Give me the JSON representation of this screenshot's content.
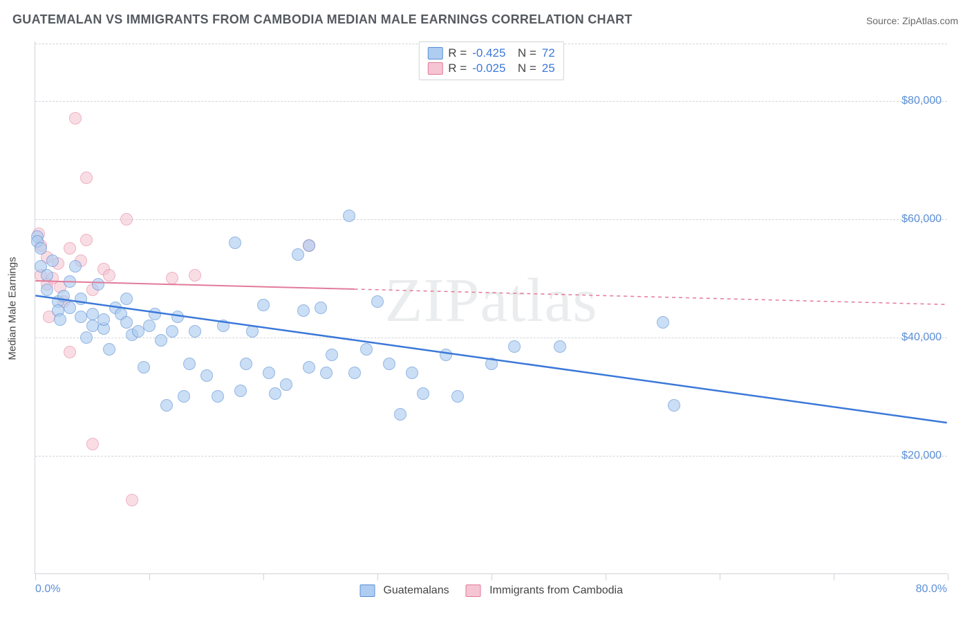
{
  "title": "GUATEMALAN VS IMMIGRANTS FROM CAMBODIA MEDIAN MALE EARNINGS CORRELATION CHART",
  "source": "Source: ZipAtlas.com",
  "watermark": "ZIPatlas",
  "chart": {
    "type": "scatter",
    "xlim": [
      0,
      80
    ],
    "ylim": [
      0,
      90000
    ],
    "x_unit": "%",
    "y_unit": "$",
    "x_min_label": "0.0%",
    "x_max_label": "80.0%",
    "y_ticks": [
      20000,
      40000,
      60000,
      80000
    ],
    "y_tick_labels": [
      "$20,000",
      "$40,000",
      "$60,000",
      "$80,000"
    ],
    "x_ticks_minor": [
      0,
      10,
      20,
      30,
      40,
      50,
      60,
      70,
      80
    ],
    "gridline_color": "#d0d4d9",
    "axis_color": "#cfd3d8",
    "background_color": "#ffffff",
    "tick_label_color": "#5b8fd6",
    "y_axis_label": "Median Male Earnings",
    "marker_radius": 9,
    "marker_border_width": 1.2,
    "series": [
      {
        "name": "Guatemalans",
        "fill_color": "#aecdf0",
        "stroke_color": "#5a8fd4",
        "fill_opacity": 0.65,
        "R": "-0.425",
        "N": "72",
        "regression": {
          "x1": 0,
          "y1": 47000,
          "x2": 80,
          "y2": 25500,
          "color": "#3b78d8",
          "width": 2.5,
          "dash": "none",
          "solid_until_x": 80
        },
        "points": [
          [
            0.2,
            57000
          ],
          [
            0.2,
            56200
          ],
          [
            0.5,
            55000
          ],
          [
            0.5,
            52000
          ],
          [
            1,
            50500
          ],
          [
            1,
            48000
          ],
          [
            1.5,
            53000
          ],
          [
            2,
            46000
          ],
          [
            2,
            44500
          ],
          [
            2.2,
            43000
          ],
          [
            2.5,
            47000
          ],
          [
            3,
            49500
          ],
          [
            3,
            45000
          ],
          [
            3.5,
            52000
          ],
          [
            4,
            46500
          ],
          [
            4,
            43500
          ],
          [
            4.5,
            40000
          ],
          [
            5,
            44000
          ],
          [
            5,
            42000
          ],
          [
            5.5,
            49000
          ],
          [
            6,
            41500
          ],
          [
            6,
            43000
          ],
          [
            6.5,
            38000
          ],
          [
            7,
            45000
          ],
          [
            7.5,
            44000
          ],
          [
            8,
            46500
          ],
          [
            8,
            42500
          ],
          [
            8.5,
            40500
          ],
          [
            9,
            41000
          ],
          [
            9.5,
            35000
          ],
          [
            10,
            42000
          ],
          [
            10.5,
            44000
          ],
          [
            11,
            39500
          ],
          [
            11.5,
            28500
          ],
          [
            12,
            41000
          ],
          [
            12.5,
            43500
          ],
          [
            13,
            30000
          ],
          [
            13.5,
            35500
          ],
          [
            14,
            41000
          ],
          [
            15,
            33500
          ],
          [
            16,
            30000
          ],
          [
            16.5,
            42000
          ],
          [
            17.5,
            56000
          ],
          [
            18,
            31000
          ],
          [
            18.5,
            35500
          ],
          [
            19,
            41000
          ],
          [
            20,
            45500
          ],
          [
            20.5,
            34000
          ],
          [
            21,
            30500
          ],
          [
            22,
            32000
          ],
          [
            23,
            54000
          ],
          [
            23.5,
            44500
          ],
          [
            24,
            55500
          ],
          [
            24,
            35000
          ],
          [
            25,
            45000
          ],
          [
            25.5,
            34000
          ],
          [
            26,
            37000
          ],
          [
            27.5,
            60500
          ],
          [
            28,
            34000
          ],
          [
            29,
            38000
          ],
          [
            30,
            46000
          ],
          [
            31,
            35500
          ],
          [
            32,
            27000
          ],
          [
            33,
            34000
          ],
          [
            34,
            30500
          ],
          [
            36,
            37000
          ],
          [
            37,
            30000
          ],
          [
            40,
            35500
          ],
          [
            42,
            38500
          ],
          [
            46,
            38500
          ],
          [
            55,
            42500
          ],
          [
            56,
            28500
          ]
        ]
      },
      {
        "name": "Immigrants from Cambodia",
        "fill_color": "#f5c5d3",
        "stroke_color": "#e27a9a",
        "fill_opacity": 0.58,
        "R": "-0.025",
        "N": "25",
        "regression": {
          "x1": 0,
          "y1": 49500,
          "x2": 80,
          "y2": 45500,
          "color": "#e27a9a",
          "width": 2,
          "dash": "5,5",
          "solid_until_x": 28
        },
        "points": [
          [
            0.3,
            57500
          ],
          [
            0.5,
            55500
          ],
          [
            0.5,
            50500
          ],
          [
            1,
            53500
          ],
          [
            1,
            49000
          ],
          [
            1.2,
            43500
          ],
          [
            1.5,
            50000
          ],
          [
            2,
            52500
          ],
          [
            2.2,
            48500
          ],
          [
            2.5,
            46000
          ],
          [
            3,
            55000
          ],
          [
            3,
            37500
          ],
          [
            3.5,
            77000
          ],
          [
            4,
            53000
          ],
          [
            4.5,
            56500
          ],
          [
            4.5,
            67000
          ],
          [
            5,
            22000
          ],
          [
            5,
            48000
          ],
          [
            6,
            51500
          ],
          [
            6.5,
            50500
          ],
          [
            8,
            60000
          ],
          [
            8.5,
            12500
          ],
          [
            12,
            50000
          ],
          [
            14,
            50500
          ],
          [
            24,
            55500
          ]
        ]
      }
    ],
    "legend_bottom": [
      {
        "swatch_fill": "#aecdf0",
        "swatch_stroke": "#5a8fd4",
        "label": "Guatemalans"
      },
      {
        "swatch_fill": "#f5c5d3",
        "swatch_stroke": "#e27a9a",
        "label": "Immigrants from Cambodia"
      }
    ]
  }
}
